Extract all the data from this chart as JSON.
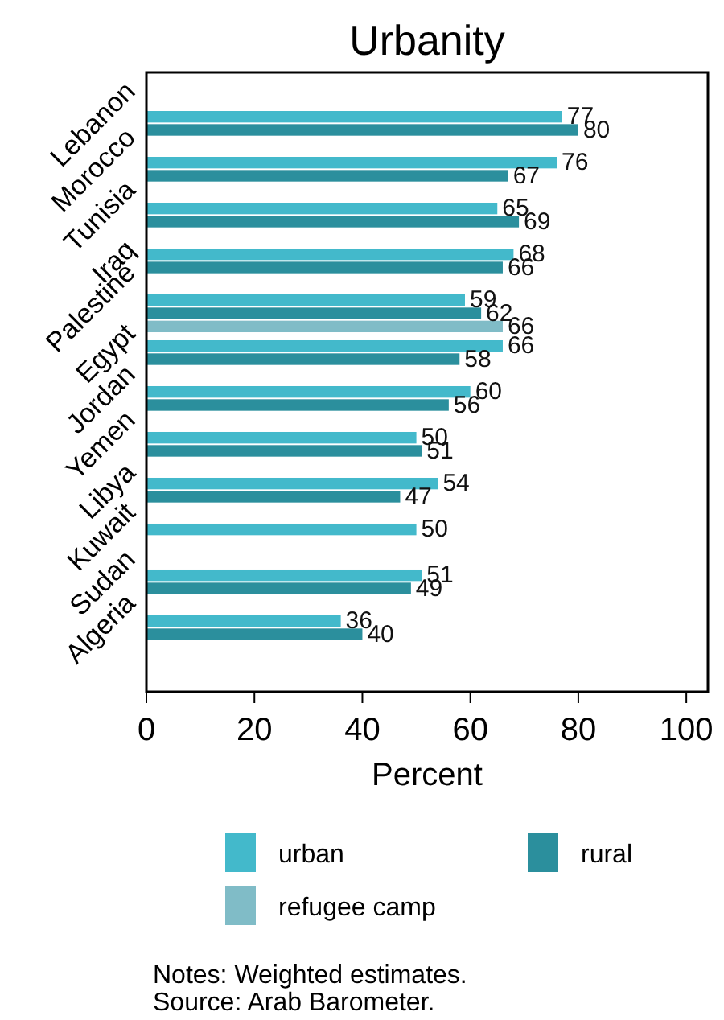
{
  "chart_data": {
    "type": "bar",
    "orientation": "horizontal",
    "title": "Urbanity",
    "xlabel": "Percent",
    "categories": [
      "Lebanon",
      "Morocco",
      "Tunisia",
      "Iraq",
      "Palestine",
      "Egypt",
      "Jordan",
      "Yemen",
      "Libya",
      "Kuwait",
      "Sudan",
      "Algeria"
    ],
    "series": [
      {
        "name": "urban",
        "color": "#43b9cb",
        "values": [
          77,
          76,
          65,
          68,
          59,
          66,
          60,
          50,
          54,
          50,
          51,
          36
        ]
      },
      {
        "name": "rural",
        "color": "#2b8f9d",
        "values": [
          80,
          67,
          69,
          66,
          62,
          58,
          56,
          51,
          47,
          null,
          49,
          40
        ]
      },
      {
        "name": "refugee camp",
        "color": "#80bcc7",
        "values": [
          null,
          null,
          null,
          null,
          66,
          null,
          null,
          null,
          null,
          null,
          null,
          null
        ]
      }
    ],
    "xlim": [
      0,
      104
    ],
    "xticks": [
      0,
      20,
      40,
      60,
      80,
      100
    ],
    "grid": false,
    "legend": "bottom",
    "data_labels": true,
    "annotations": [
      "Notes: Weighted estimates.",
      "Source: Arab Barometer."
    ]
  }
}
